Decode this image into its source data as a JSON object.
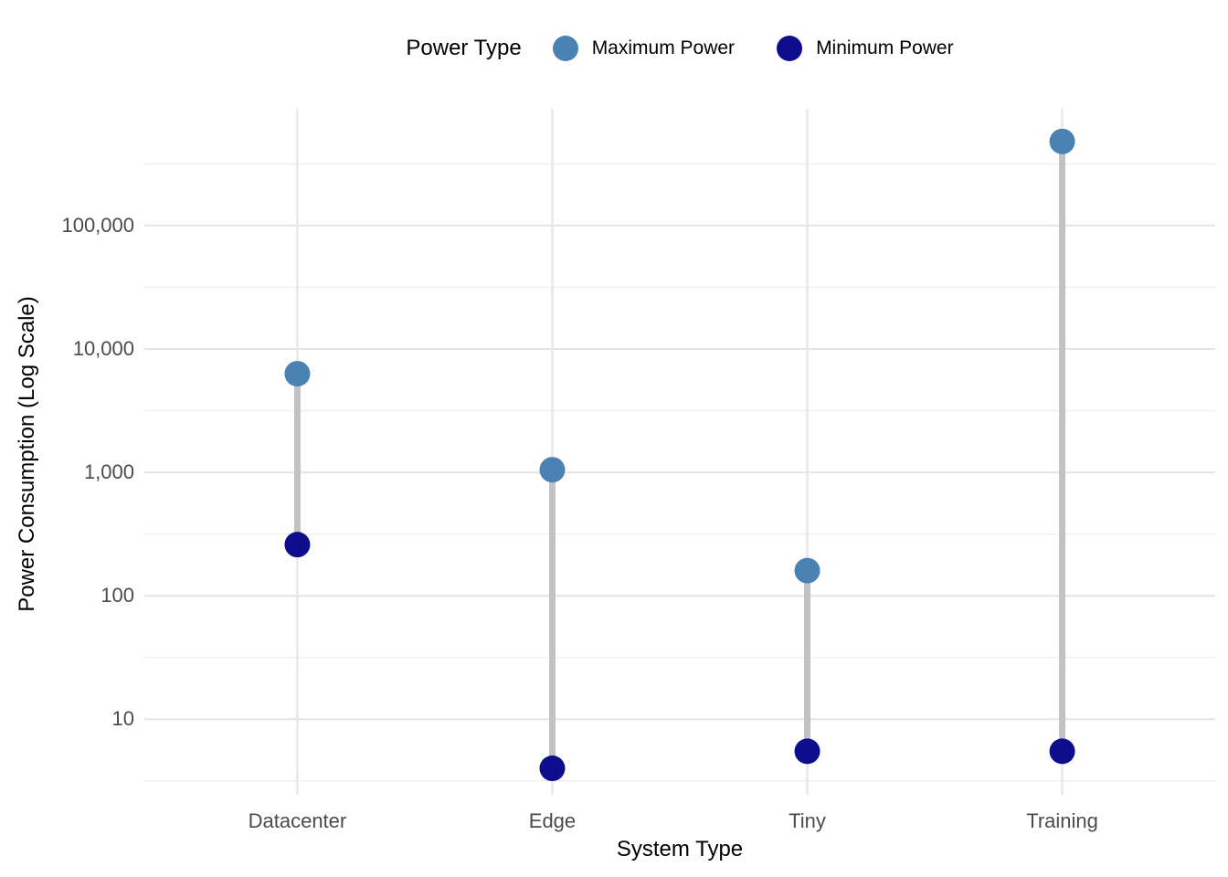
{
  "legend": {
    "title": "Power Type",
    "items": [
      {
        "label": "Maximum Power",
        "color": "#4B82B4"
      },
      {
        "label": "Minimum Power",
        "color": "#0D0D8E"
      }
    ]
  },
  "axes": {
    "x_title": "System Type",
    "y_title": "Power Consumption (Log Scale)"
  },
  "chart_data": {
    "type": "dumbbell",
    "title": "",
    "xlabel": "System Type",
    "ylabel": "Power Consumption (Log Scale)",
    "categories": [
      "Datacenter",
      "Edge",
      "Tiny",
      "Training"
    ],
    "series": [
      {
        "name": "Maximum Power",
        "color": "#4B82B4",
        "values": [
          6300,
          1050,
          160,
          480000
        ]
      },
      {
        "name": "Minimum Power",
        "color": "#0D0D8E",
        "values": [
          260,
          4,
          5.5,
          5.5
        ]
      }
    ],
    "y_axis": {
      "scale": "log10",
      "ticks": [
        10,
        100,
        1000,
        10000,
        100000
      ],
      "tick_labels": [
        "10",
        "100",
        "1,000",
        "10,000",
        "100,000"
      ],
      "range_approx": [
        2.7,
        900000
      ]
    },
    "grid": true,
    "legend_position": "top",
    "connector_color": "#C2C2C2",
    "point_radius_px": 14,
    "background": "#FFFFFF"
  },
  "style_colors": {
    "grid_major": "#E4E4E4",
    "grid_minor": "#F0F0F0",
    "grid_vertical": "#E8E8E8",
    "tick_text": "#4B4B4B",
    "axis_title_text": "#000000"
  }
}
